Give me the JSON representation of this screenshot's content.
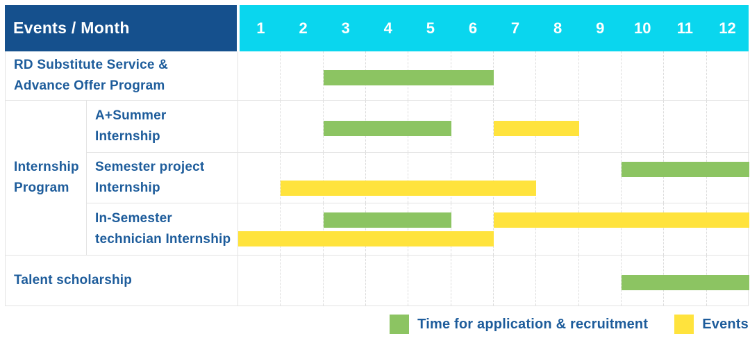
{
  "header": {
    "title": "Events / Month"
  },
  "legend": {
    "application": "Time for application & recruitment",
    "events": "Events"
  },
  "colors": {
    "header_navy": "#15508d",
    "header_cyan": "#0ad6ee",
    "application_green": "#8cc462",
    "event_yellow": "#ffe33d",
    "label_blue": "#1d5c9b",
    "border_gray": "#e3e3e3"
  },
  "chart_data": {
    "type": "bar",
    "subtype": "gantt-schedule",
    "title": "Events / Month",
    "x_categories": [
      "1",
      "2",
      "3",
      "4",
      "5",
      "6",
      "7",
      "8",
      "9",
      "10",
      "11",
      "12"
    ],
    "x_range": [
      1,
      12
    ],
    "grid": "dashed-vertical-month-lines",
    "legend_position": "bottom-right",
    "legend": {
      "application": "Time for application & recruitment",
      "event": "Events"
    },
    "rows": [
      {
        "group": null,
        "label": "RD Substitute Service & Advance Offer Program",
        "label_lines": [
          "RD Substitute Service &",
          "Advance Offer Program"
        ],
        "bars": [
          {
            "kind": "application",
            "start_month": 3,
            "end_month": 6,
            "lane": "center"
          }
        ]
      },
      {
        "group": "Internship Program",
        "label": "A+Summer Internship",
        "label_lines": [
          "A+Summer",
          "Internship"
        ],
        "bars": [
          {
            "kind": "application",
            "start_month": 3,
            "end_month": 5,
            "lane": "center"
          },
          {
            "kind": "event",
            "start_month": 7,
            "end_month": 8,
            "lane": "center"
          }
        ]
      },
      {
        "group": "Internship Program",
        "label": "Semester project Internship",
        "label_lines": [
          "Semester project",
          "Internship"
        ],
        "bars": [
          {
            "kind": "application",
            "start_month": 10,
            "end_month": 12,
            "lane": "upper"
          },
          {
            "kind": "event",
            "start_month": 2,
            "end_month": 7,
            "lane": "lower"
          }
        ]
      },
      {
        "group": "Internship Program",
        "label": "In-Semester technician Internship",
        "label_lines": [
          "In-Semester",
          "technician Internship"
        ],
        "bars": [
          {
            "kind": "application",
            "start_month": 3,
            "end_month": 5,
            "lane": "upper"
          },
          {
            "kind": "event",
            "start_month": 7,
            "end_month": 12,
            "lane": "upper"
          },
          {
            "kind": "event",
            "start_month": 1,
            "end_month": 6,
            "lane": "lower"
          }
        ]
      },
      {
        "group": null,
        "label": "Talent scholarship",
        "label_lines": [
          "Talent scholarship"
        ],
        "bars": [
          {
            "kind": "application",
            "start_month": 10,
            "end_month": 12,
            "lane": "center"
          }
        ]
      }
    ],
    "group_label_lines": [
      "Internship",
      "Program"
    ]
  }
}
